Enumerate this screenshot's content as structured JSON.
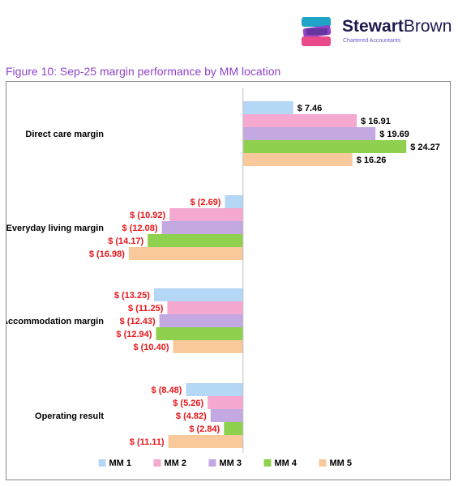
{
  "brand": {
    "name_bold": "Stewart",
    "name_regular": "Brown",
    "tagline": "Chartered Accountants",
    "colors": {
      "navy": "#1d1a4e",
      "purple": "#8e44c9",
      "pink": "#e84a8a",
      "teal": "#1fa3c7"
    }
  },
  "figure_title": "Figure 10: Sep-25 margin performance by MM location",
  "chart_data": {
    "type": "bar",
    "orientation": "horizontal",
    "categories": [
      "Direct care margin",
      "Everyday living margin",
      "Accommodation margin",
      "Operating result"
    ],
    "series": [
      {
        "name": "MM 1",
        "color": "#b4d7f5",
        "values": [
          7.46,
          -2.69,
          -13.25,
          -8.48
        ],
        "labels": [
          "$ 7.46",
          "$ (2.69)",
          "$ (13.25)",
          "$ (8.48)"
        ]
      },
      {
        "name": "MM 2",
        "color": "#f5a8d0",
        "values": [
          16.91,
          -10.92,
          -11.25,
          -5.26
        ],
        "labels": [
          "$ 16.91",
          "$ (10.92)",
          "$ (11.25)",
          "$ (5.26)"
        ]
      },
      {
        "name": "MM 3",
        "color": "#c4a8e2",
        "values": [
          19.69,
          -12.08,
          -12.43,
          -4.82
        ],
        "labels": [
          "$ 19.69",
          "$ (12.08)",
          "$ (12.43)",
          "$ (4.82)"
        ]
      },
      {
        "name": "MM 4",
        "color": "#8fd14f",
        "values": [
          24.27,
          -14.17,
          -12.94,
          -2.84
        ],
        "labels": [
          "$ 24.27",
          "$ (14.17)",
          "$ (12.94)",
          "$ (2.84)"
        ]
      },
      {
        "name": "MM 5",
        "color": "#f9c99c",
        "values": [
          16.26,
          -16.98,
          -10.4,
          -11.11
        ],
        "labels": [
          "$ 16.26",
          "$ (16.98)",
          "$ (10.40)",
          "$ (11.11)"
        ]
      }
    ],
    "positive_label_color": "#000000",
    "negative_label_color": "#e8161b",
    "legend_position": "bottom",
    "grid": false,
    "xlim": [
      -19.5,
      27.5
    ]
  }
}
